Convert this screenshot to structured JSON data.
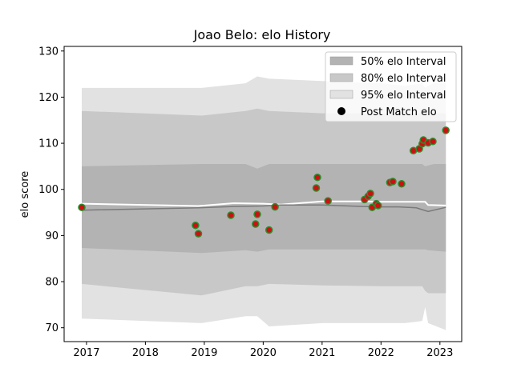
{
  "chart_data": {
    "type": "line",
    "title": "Joao Belo: elo History",
    "xlabel": "",
    "ylabel": "elo score",
    "xlim": [
      2016.62,
      2023.37
    ],
    "ylim": [
      67,
      131
    ],
    "x_ticks": [
      {
        "value": 2017,
        "label": "2017"
      },
      {
        "value": 2018,
        "label": "2018"
      },
      {
        "value": 2019,
        "label": "2019"
      },
      {
        "value": 2020,
        "label": "2020"
      },
      {
        "value": 2021,
        "label": "2021"
      },
      {
        "value": 2022,
        "label": "2022"
      },
      {
        "value": 2023,
        "label": "2023"
      }
    ],
    "y_ticks": [
      {
        "value": 70,
        "label": "70"
      },
      {
        "value": 80,
        "label": "80"
      },
      {
        "value": 90,
        "label": "90"
      },
      {
        "value": 100,
        "label": "100"
      },
      {
        "value": 110,
        "label": "110"
      },
      {
        "value": 120,
        "label": "120"
      },
      {
        "value": 130,
        "label": "130"
      }
    ],
    "grid": false,
    "legend_position": "top-right",
    "legend": [
      {
        "label": "50% elo Interval",
        "kind": "band",
        "color": "#b3b3b3"
      },
      {
        "label": "80% elo Interval",
        "kind": "band",
        "color": "#c8c8c8"
      },
      {
        "label": "95% elo Interval",
        "kind": "band",
        "color": "#e2e2e2"
      },
      {
        "label": "Post Match elo",
        "kind": "marker",
        "color": "#000000"
      }
    ],
    "band_x": [
      2016.92,
      2018.95,
      2019.7,
      2019.9,
      2020.1,
      2021.0,
      2022.0,
      2022.4,
      2022.6,
      2022.7,
      2022.75,
      2022.8,
      2022.9,
      2023.1
    ],
    "bands": [
      {
        "name": "95% elo Interval",
        "color": "#e2e2e2",
        "upper": [
          122,
          122,
          123,
          124.5,
          124,
          123.5,
          123,
          122.5,
          122.8,
          123,
          122,
          122.5,
          123,
          123
        ],
        "lower": [
          72,
          71,
          72.5,
          72.5,
          70.3,
          71,
          71,
          71,
          71.3,
          71.5,
          74.5,
          71,
          70.5,
          69.5
        ]
      },
      {
        "name": "80% elo Interval",
        "color": "#c8c8c8",
        "upper": [
          117,
          116,
          117,
          117.5,
          117,
          116.5,
          116.5,
          116.5,
          116.5,
          116.5,
          116.5,
          116.5,
          116.5,
          116.5
        ],
        "lower": [
          79.5,
          77,
          79,
          79,
          79.5,
          79.2,
          79,
          79,
          79,
          79,
          78,
          77.5,
          77.5,
          77.5
        ]
      },
      {
        "name": "50% elo Interval",
        "color": "#b3b3b3",
        "upper": [
          105,
          105.5,
          105.5,
          104.5,
          105.5,
          105.5,
          105.5,
          105.5,
          105.5,
          105.5,
          105,
          105.2,
          105.5,
          105.5
        ],
        "lower": [
          87.3,
          86.2,
          86.8,
          86.5,
          87,
          87,
          87,
          87,
          87,
          87,
          87,
          86.8,
          86.7,
          86.5
        ]
      }
    ],
    "series": [
      {
        "color": "#ffffff",
        "width": 2,
        "x": [
          2016.92,
          2018.9,
          2019.5,
          2020.0,
          2020.3,
          2021.0,
          2021.7,
          2022.0,
          2022.3,
          2022.75,
          2022.8,
          2023.1
        ],
        "y": [
          96.9,
          96.4,
          97,
          96.9,
          96.7,
          97.4,
          97.4,
          97.3,
          97.3,
          97.3,
          96.6,
          96.5
        ]
      },
      {
        "color": "#7a7a7a",
        "width": 1.5,
        "x": [
          2016.92,
          2018.9,
          2019.5,
          2020.0,
          2020.3,
          2021.0,
          2021.7,
          2022.0,
          2022.3,
          2022.6,
          2022.8,
          2023.1
        ],
        "y": [
          95.5,
          96,
          96.3,
          96.4,
          96.6,
          96.6,
          96.3,
          96.2,
          96.2,
          96,
          95.2,
          96.1
        ]
      }
    ],
    "points": {
      "fill": "#cc1111",
      "edge": "#2e8b2e",
      "values": [
        {
          "x": 2016.92,
          "y": 96.1
        },
        {
          "x": 2018.85,
          "y": 92.2
        },
        {
          "x": 2018.9,
          "y": 90.4
        },
        {
          "x": 2019.45,
          "y": 94.4
        },
        {
          "x": 2019.87,
          "y": 92.5
        },
        {
          "x": 2019.9,
          "y": 94.6
        },
        {
          "x": 2020.1,
          "y": 91.2
        },
        {
          "x": 2020.2,
          "y": 96.2
        },
        {
          "x": 2020.9,
          "y": 100.3
        },
        {
          "x": 2020.92,
          "y": 102.6
        },
        {
          "x": 2021.1,
          "y": 97.5
        },
        {
          "x": 2021.72,
          "y": 97.8
        },
        {
          "x": 2021.78,
          "y": 98.5
        },
        {
          "x": 2021.82,
          "y": 99.1
        },
        {
          "x": 2021.85,
          "y": 96.1
        },
        {
          "x": 2021.92,
          "y": 96.9
        },
        {
          "x": 2021.95,
          "y": 96.5
        },
        {
          "x": 2022.15,
          "y": 101.5
        },
        {
          "x": 2022.2,
          "y": 101.7
        },
        {
          "x": 2022.35,
          "y": 101.2
        },
        {
          "x": 2022.55,
          "y": 108.4
        },
        {
          "x": 2022.65,
          "y": 108.8
        },
        {
          "x": 2022.7,
          "y": 109.9
        },
        {
          "x": 2022.72,
          "y": 110.7
        },
        {
          "x": 2022.8,
          "y": 110.1
        },
        {
          "x": 2022.88,
          "y": 110.4
        },
        {
          "x": 2023.1,
          "y": 112.8
        }
      ]
    }
  }
}
